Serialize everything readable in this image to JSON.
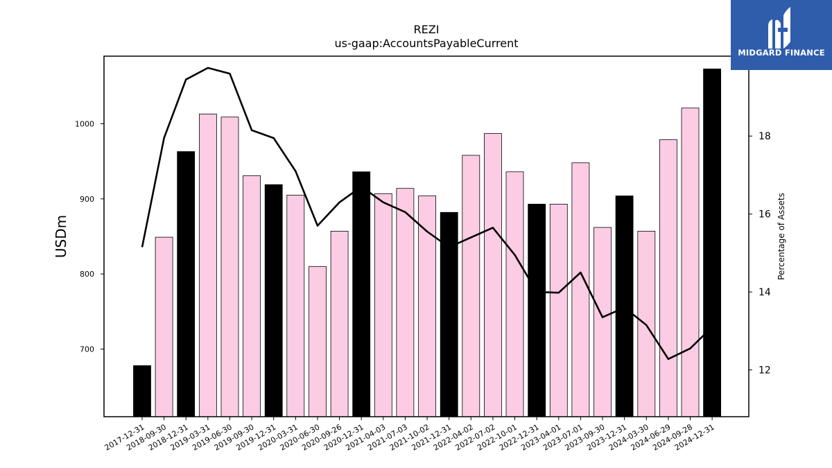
{
  "logo": {
    "text": "MIDGARD FINANCE",
    "bg_color": "#2f5dab"
  },
  "chart_data": {
    "type": "bar",
    "title": "REZI",
    "subtitle": "us-gaap:AccountsPayableCurrent",
    "ylabel": "USDm",
    "y2label": "Percentage of Assets",
    "ylim": [
      610,
      1090
    ],
    "y2lim": [
      10.8,
      20.05
    ],
    "yticks": [
      700,
      800,
      900,
      1000
    ],
    "y2ticks": [
      12,
      14,
      16,
      18
    ],
    "categories": [
      "2017-12-31",
      "2018-09-30",
      "2018-12-31",
      "2019-03-31",
      "2019-06-30",
      "2019-09-30",
      "2019-12-31",
      "2020-03-31",
      "2020-06-30",
      "2020-09-26",
      "2020-12-31",
      "2021-04-03",
      "2021-07-03",
      "2021-10-02",
      "2021-12-31",
      "2022-04-02",
      "2022-07-02",
      "2022-10-01",
      "2022-12-31",
      "2023-04-01",
      "2023-07-01",
      "2023-09-30",
      "2023-12-31",
      "2024-03-30",
      "2024-06-29",
      "2024-09-28",
      "2024-12-31"
    ],
    "series": [
      {
        "type": "bar",
        "values": [
          678,
          849,
          963,
          1013,
          1009,
          931,
          919,
          905,
          810,
          857,
          936,
          907,
          914,
          904,
          882,
          958,
          987,
          936,
          893,
          893,
          948,
          862,
          904,
          857,
          979,
          1021,
          1073
        ],
        "colors_by_period": {
          "year_end": "#000000",
          "quarter": "#fccce4"
        }
      },
      {
        "type": "line",
        "axis": "right",
        "values": [
          15.15,
          17.95,
          19.45,
          19.75,
          19.6,
          18.15,
          17.95,
          17.1,
          15.7,
          16.3,
          16.7,
          16.3,
          16.05,
          15.55,
          15.15,
          15.4,
          15.65,
          14.95,
          14.0,
          13.98,
          14.5,
          13.35,
          13.6,
          13.15,
          12.28,
          12.55,
          13.1
        ],
        "color": "#000000"
      }
    ],
    "bar_color_quarter": "#fccce4",
    "bar_color_year_end": "#000000",
    "grid": false,
    "legend": "none"
  }
}
